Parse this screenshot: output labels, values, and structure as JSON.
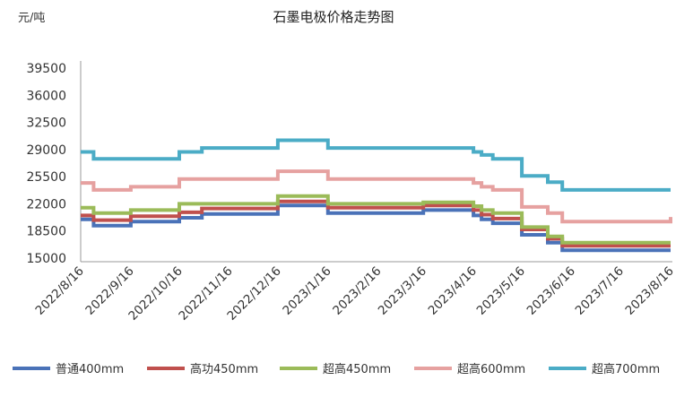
{
  "chart_data": {
    "type": "line",
    "title": "石墨电极价格走势图",
    "yunit": "元/吨",
    "yticks": [
      "39500",
      "36000",
      "32500",
      "29000",
      "25500",
      "22000",
      "18500",
      "15000"
    ],
    "ylim": [
      15000,
      39500
    ],
    "xlim": [
      "2022/8/16",
      "2023/8/16"
    ],
    "xticks": [
      "2022/8/16",
      "2022/9/16",
      "2022/10/16",
      "2022/11/16",
      "2022/12/16",
      "2023/1/16",
      "2023/2/16",
      "2023/3/16",
      "2023/4/16",
      "2023/5/16",
      "2023/6/16",
      "2023/7/16",
      "2023/8/16"
    ],
    "grid": false,
    "legend": "bottom",
    "series": [
      {
        "name": "普通400mm",
        "color": "#4a72b8",
        "points": [
          [
            "2022/8/16",
            20000
          ],
          [
            "2022/8/24",
            19200
          ],
          [
            "2022/9/16",
            19700
          ],
          [
            "2022/10/16",
            20200
          ],
          [
            "2022/10/30",
            20700
          ],
          [
            "2022/12/16",
            21800
          ],
          [
            "2023/1/16",
            20800
          ],
          [
            "2023/3/16",
            21200
          ],
          [
            "2023/4/16",
            20500
          ],
          [
            "2023/4/21",
            20000
          ],
          [
            "2023/4/28",
            19500
          ],
          [
            "2023/5/16",
            18000
          ],
          [
            "2023/6/1",
            17000
          ],
          [
            "2023/6/10",
            16000
          ],
          [
            "2023/8/16",
            16000
          ]
        ]
      },
      {
        "name": "高功450mm",
        "color": "#c0504d",
        "points": [
          [
            "2022/8/16",
            20500
          ],
          [
            "2022/8/24",
            19900
          ],
          [
            "2022/9/16",
            20400
          ],
          [
            "2022/10/16",
            20900
          ],
          [
            "2022/10/30",
            21400
          ],
          [
            "2022/12/16",
            22300
          ],
          [
            "2023/1/16",
            21500
          ],
          [
            "2023/3/16",
            21800
          ],
          [
            "2023/4/16",
            21200
          ],
          [
            "2023/4/21",
            20600
          ],
          [
            "2023/4/28",
            20100
          ],
          [
            "2023/5/16",
            18700
          ],
          [
            "2023/6/1",
            17500
          ],
          [
            "2023/6/10",
            16600
          ],
          [
            "2023/8/16",
            16600
          ]
        ]
      },
      {
        "name": "超高450mm",
        "color": "#9bbb59",
        "points": [
          [
            "2022/8/16",
            21500
          ],
          [
            "2022/8/24",
            20800
          ],
          [
            "2022/9/16",
            21200
          ],
          [
            "2022/10/16",
            22000
          ],
          [
            "2022/12/16",
            23000
          ],
          [
            "2023/1/16",
            22000
          ],
          [
            "2023/3/16",
            22200
          ],
          [
            "2023/4/16",
            21700
          ],
          [
            "2023/4/21",
            21200
          ],
          [
            "2023/4/28",
            20800
          ],
          [
            "2023/5/16",
            19000
          ],
          [
            "2023/6/1",
            17800
          ],
          [
            "2023/6/10",
            17000
          ],
          [
            "2023/8/16",
            17000
          ]
        ]
      },
      {
        "name": "超高600mm",
        "color": "#e6a1a0",
        "points": [
          [
            "2022/8/16",
            24700
          ],
          [
            "2022/8/24",
            23800
          ],
          [
            "2022/9/16",
            24200
          ],
          [
            "2022/10/16",
            25200
          ],
          [
            "2022/12/16",
            26200
          ],
          [
            "2023/1/16",
            25200
          ],
          [
            "2023/4/16",
            24700
          ],
          [
            "2023/4/21",
            24200
          ],
          [
            "2023/4/28",
            23800
          ],
          [
            "2023/5/16",
            21600
          ],
          [
            "2023/6/1",
            20800
          ],
          [
            "2023/6/10",
            19700
          ],
          [
            "2023/8/16",
            19700
          ],
          [
            "2023/8/16",
            20300
          ]
        ]
      },
      {
        "name": "超高700mm",
        "color": "#4bacc6",
        "points": [
          [
            "2022/8/16",
            28700
          ],
          [
            "2022/8/24",
            27800
          ],
          [
            "2022/10/16",
            28700
          ],
          [
            "2022/10/30",
            29200
          ],
          [
            "2022/12/16",
            30200
          ],
          [
            "2023/1/16",
            29200
          ],
          [
            "2023/4/16",
            28700
          ],
          [
            "2023/4/21",
            28300
          ],
          [
            "2023/4/28",
            27800
          ],
          [
            "2023/5/16",
            25600
          ],
          [
            "2023/6/1",
            24800
          ],
          [
            "2023/6/10",
            23800
          ],
          [
            "2023/8/16",
            23800
          ]
        ]
      }
    ]
  }
}
